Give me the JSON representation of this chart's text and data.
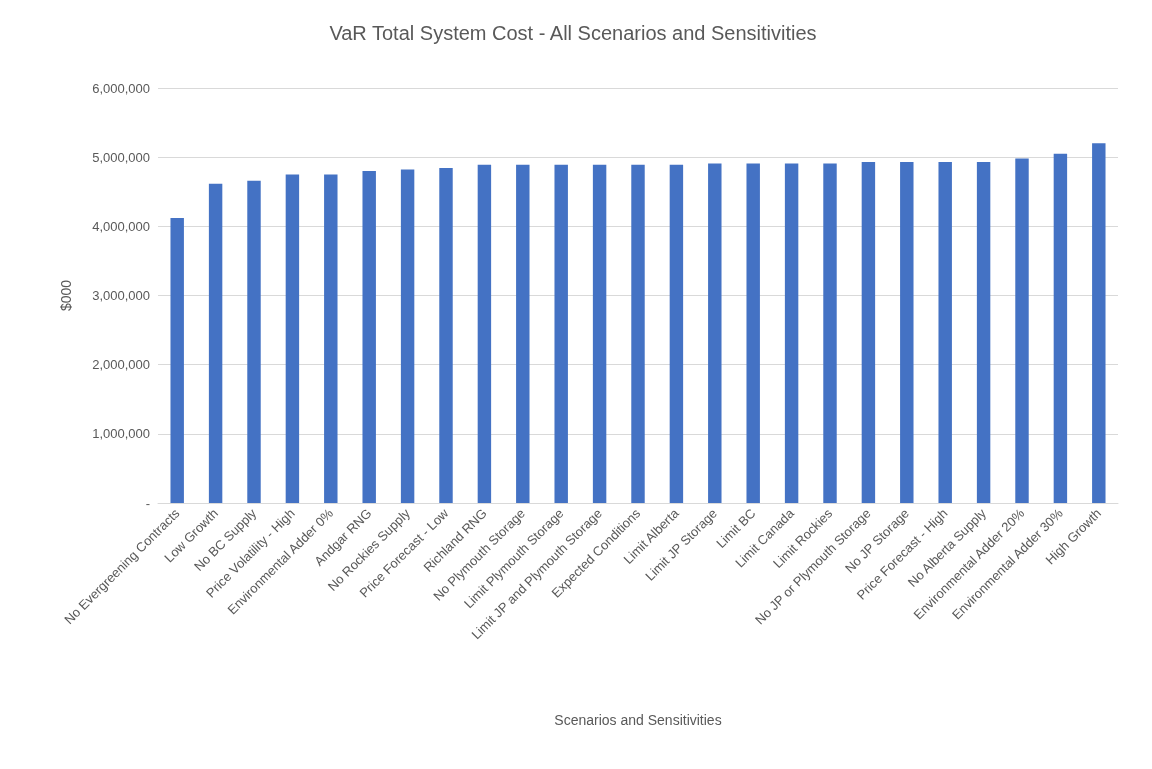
{
  "chart_data": {
    "type": "bar",
    "title": "VaR Total System Cost - All Scenarios and Sensitivities",
    "xlabel": "Scenarios and Sensitivities",
    "ylabel": "$000",
    "categories": [
      "No Evergreening Contracts",
      "Low Growth",
      "No BC Supply",
      "Price Volatility - High",
      "Environmental Adder 0%",
      "Andgar RNG",
      "No Rockies Supply",
      "Price Forecast - Low",
      "Richland RNG",
      "No Plymouth Storage",
      "Limit Plymouth Storage",
      "Limit JP and Plymouth Storage",
      "Expected Conditions",
      "Limit Alberta",
      "Limit JP Storage",
      "Limit BC",
      "Limit Canada",
      "Limit Rockies",
      "No JP or Plymouth Storage",
      "No JP Storage",
      "Price Forecast - High",
      "No Alberta Supply",
      "Environmental Adder 20%",
      "Environmental Adder 30%",
      "High Growth"
    ],
    "values": [
      4120000,
      4615000,
      4660000,
      4750000,
      4750000,
      4800000,
      4820000,
      4845000,
      4890000,
      4890000,
      4890000,
      4890000,
      4890000,
      4890000,
      4910000,
      4910000,
      4910000,
      4910000,
      4930000,
      4930000,
      4930000,
      4930000,
      4980000,
      5050000,
      5200000
    ],
    "color": "#4472c4",
    "ylim": [
      0,
      6000000
    ],
    "yticks": [
      {
        "value": 0,
        "label": "-"
      },
      {
        "value": 1000000,
        "label": "1,000,000"
      },
      {
        "value": 2000000,
        "label": "2,000,000"
      },
      {
        "value": 3000000,
        "label": "3,000,000"
      },
      {
        "value": 4000000,
        "label": "4,000,000"
      },
      {
        "value": 5000000,
        "label": "5,000,000"
      },
      {
        "value": 6000000,
        "label": "6,000,000"
      }
    ],
    "grid": "y"
  }
}
